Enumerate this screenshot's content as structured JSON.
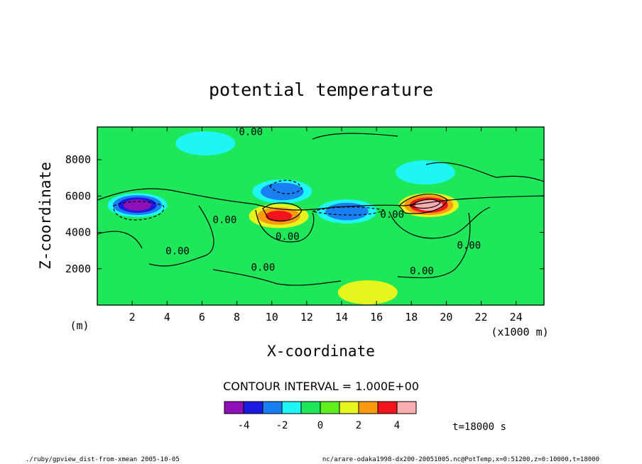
{
  "chart_data": {
    "type": "heatmap",
    "title": "potential temperature",
    "xlabel": "X-coordinate",
    "ylabel": "Z-coordinate",
    "y_unit": "(m)",
    "x_unit": "(x1000 m)",
    "xlim": [
      0,
      25.6
    ],
    "ylim": [
      0,
      9800
    ],
    "x_ticks": [
      2,
      4,
      6,
      8,
      10,
      12,
      14,
      16,
      18,
      20,
      22,
      24
    ],
    "x_tick_labels": [
      "2",
      "4",
      "6",
      "8",
      "10",
      "12",
      "14",
      "16",
      "18",
      "20",
      "22",
      "24"
    ],
    "y_ticks": [
      2000,
      4000,
      6000,
      8000
    ],
    "y_tick_labels": [
      "2000",
      "4000",
      "6000",
      "8000"
    ],
    "contour_interval_text": "CONTOUR INTERVAL = 1.000E+00",
    "contour_interval": 1.0,
    "contour_labels": [
      {
        "text": "0.00",
        "x": 8.8,
        "z": 9350
      },
      {
        "text": "0.00",
        "x": 7.3,
        "z": 4500
      },
      {
        "text": "0.00",
        "x": 4.6,
        "z": 2800
      },
      {
        "text": "0.00",
        "x": 9.5,
        "z": 1900
      },
      {
        "text": "0.00",
        "x": 10.9,
        "z": 3600
      },
      {
        "text": "0.00",
        "x": 16.9,
        "z": 4800
      },
      {
        "text": "0.00",
        "x": 18.6,
        "z": 1700
      },
      {
        "text": "0.00",
        "x": 21.3,
        "z": 3100
      }
    ],
    "colorbar": {
      "colors": [
        "#8e10b8",
        "#1c19e0",
        "#1a7ff2",
        "#1ef6f6",
        "#1ee85a",
        "#5ef01e",
        "#e6f41e",
        "#fa9a10",
        "#f4141e",
        "#f8aeb0"
      ],
      "tick_values": [
        -4,
        -2,
        0,
        2,
        4
      ],
      "tick_labels": [
        "-4",
        "-2",
        "0",
        "2",
        "4"
      ]
    },
    "anomalies": [
      {
        "x": 2.3,
        "z": 5500,
        "value": -4.5
      },
      {
        "x": 10.6,
        "z": 6250,
        "value": -2.5
      },
      {
        "x": 10.4,
        "z": 4900,
        "value": 3.0
      },
      {
        "x": 14.3,
        "z": 5150,
        "value": -2.3
      },
      {
        "x": 19.0,
        "z": 5500,
        "value": 4.5
      },
      {
        "x": 18.8,
        "z": 7300,
        "value": -1.5
      },
      {
        "x": 15.5,
        "z": 700,
        "value": 1.6
      },
      {
        "x": 6.2,
        "z": 8900,
        "value": -1.2
      }
    ],
    "grid": false,
    "legend": "colorbar below plot"
  },
  "footer": {
    "time": "t=18000 s",
    "left": "./ruby/gpview_dist-from-xmean   2005-10-05",
    "right": "nc/arare-odaka1998-dx200-20051005.nc@PotTemp,x=0:51200,z=0:10000,t=18000"
  }
}
